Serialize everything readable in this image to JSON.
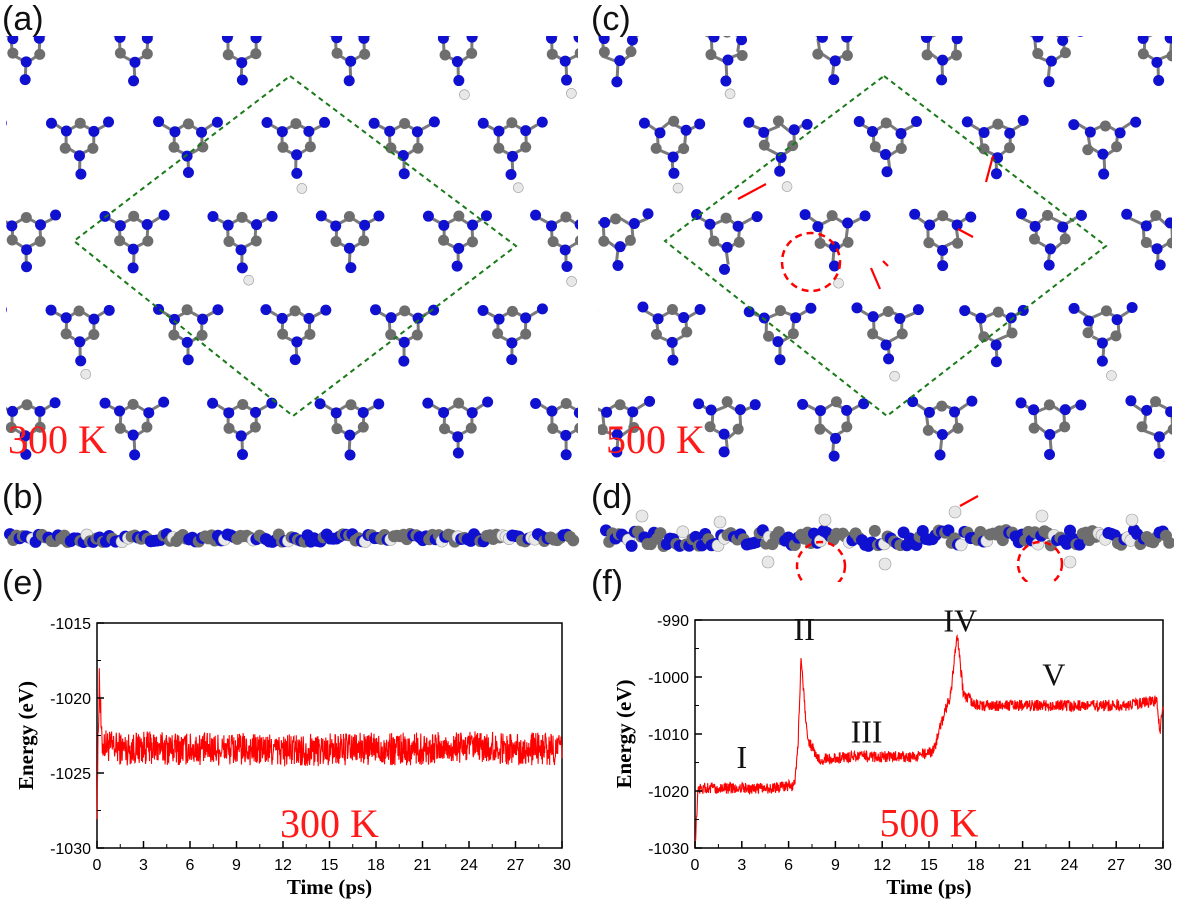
{
  "figure": {
    "panels": {
      "a": {
        "label": "(a)",
        "temperature": "300 K"
      },
      "b": {
        "label": "(b)"
      },
      "c": {
        "label": "(c)",
        "temperature": "500 K"
      },
      "d": {
        "label": "(d)"
      },
      "e": {
        "label": "(e)"
      },
      "f": {
        "label": "(f)"
      }
    },
    "colors": {
      "carbon": "#6e6e6e",
      "nitrogen": "#1010d0",
      "hydrogen": "#e8e8e8",
      "trace": "#ff0000",
      "cell": "#1a7a1a"
    }
  },
  "chart_data": [
    {
      "type": "line",
      "panel": "e",
      "title": "",
      "annotation": "300 K",
      "xlabel": "Time (ps)",
      "ylabel": "Energy (eV)",
      "xlim": [
        0,
        30
      ],
      "ylim": [
        -1030,
        -1015
      ],
      "xticks": [
        "0",
        "3",
        "6",
        "9",
        "12",
        "15",
        "18",
        "21",
        "24",
        "27",
        "30"
      ],
      "yticks": [
        "-1030",
        "-1025",
        "-1020",
        "-1015"
      ],
      "series": [
        {
          "name": "Energy",
          "x": [
            0,
            0.15,
            0.3,
            1,
            2,
            3,
            5,
            8,
            12,
            16,
            20,
            24,
            28,
            30
          ],
          "y": [
            -1027,
            -1018.5,
            -1023,
            -1023.3,
            -1023.4,
            -1023.3,
            -1023.4,
            -1023.4,
            -1023.5,
            -1023.4,
            -1023.4,
            -1023.3,
            -1023.4,
            -1023.4
          ],
          "noise": 1.1
        }
      ]
    },
    {
      "type": "line",
      "panel": "f",
      "title": "",
      "annotation": "500 K",
      "xlabel": "Time (ps)",
      "ylabel": "Energy (eV)",
      "xlim": [
        0,
        30
      ],
      "ylim": [
        -1030,
        -990
      ],
      "xticks": [
        "0",
        "3",
        "6",
        "9",
        "12",
        "15",
        "18",
        "21",
        "24",
        "27",
        "30"
      ],
      "yticks": [
        "-1030",
        "-1020",
        "-1010",
        "-1000",
        "-990"
      ],
      "stage_labels": [
        {
          "text": "I",
          "x": 3,
          "y": -1016
        },
        {
          "text": "II",
          "x": 7,
          "y": -993.5
        },
        {
          "text": "III",
          "x": 11,
          "y": -1011.5
        },
        {
          "text": "IV",
          "x": 17,
          "y": -992
        },
        {
          "text": "V",
          "x": 23,
          "y": -1001.5
        }
      ],
      "series": [
        {
          "name": "Energy",
          "x": [
            0,
            0.2,
            1,
            3,
            5,
            6.4,
            6.6,
            6.8,
            7.2,
            8,
            10,
            12,
            14,
            15.3,
            15.8,
            16.4,
            16.8,
            17.2,
            18,
            20,
            24,
            28,
            29.6,
            29.8,
            30
          ],
          "y": [
            -1030,
            -1019.5,
            -1019.5,
            -1019.5,
            -1019.5,
            -1019,
            -1012,
            -996.5,
            -1011,
            -1014.5,
            -1014,
            -1014,
            -1014,
            -1013,
            -1008,
            -1003,
            -992,
            -1003,
            -1005,
            -1005,
            -1005,
            -1005,
            -1004,
            -1010,
            -1005
          ],
          "noise": 1.0
        }
      ]
    }
  ]
}
